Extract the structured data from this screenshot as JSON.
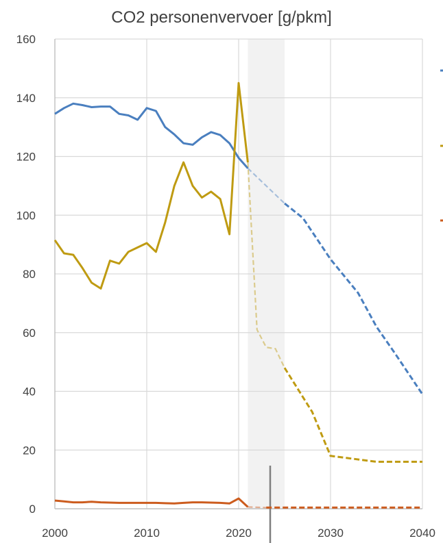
{
  "chart_data": {
    "type": "line",
    "title": "CO2 personenvervoer [g/pkm]",
    "xlabel": "",
    "ylabel": "",
    "xlim": [
      2000,
      2040
    ],
    "ylim": [
      0,
      160
    ],
    "x_ticks": [
      2000,
      2010,
      2020,
      2030,
      2040
    ],
    "y_ticks": [
      0,
      20,
      40,
      60,
      80,
      100,
      120,
      140,
      160
    ],
    "grid": true,
    "highlight_band": [
      2021,
      2025
    ],
    "colors": {
      "blue": "#4a7fbf",
      "gold": "#bf9b12",
      "orange": "#cc5c1e",
      "band": "#f2f2f2",
      "grid": "#d9d9d9",
      "axis": "#bfbfbf"
    },
    "series": [
      {
        "color": "#4a7fbf",
        "historic": [
          [
            2000,
            134.5
          ],
          [
            2001,
            136.5
          ],
          [
            2002,
            138
          ],
          [
            2003,
            137.5
          ],
          [
            2004,
            136.8
          ],
          [
            2005,
            137
          ],
          [
            2006,
            137
          ],
          [
            2007,
            134.5
          ],
          [
            2008,
            134
          ],
          [
            2009,
            132.5
          ],
          [
            2010,
            136.5
          ],
          [
            2011,
            135.5
          ],
          [
            2012,
            130
          ],
          [
            2013,
            127.5
          ],
          [
            2014,
            124.5
          ],
          [
            2015,
            124
          ],
          [
            2016,
            126.5
          ],
          [
            2017,
            128.3
          ],
          [
            2018,
            127.3
          ],
          [
            2019,
            124.5
          ],
          [
            2020,
            119.5
          ],
          [
            2021,
            116
          ]
        ],
        "projection_light": [
          [
            2021,
            116
          ],
          [
            2025,
            104
          ]
        ],
        "projection": [
          [
            2025,
            104
          ],
          [
            2027,
            99
          ],
          [
            2030,
            85
          ],
          [
            2033,
            73.5
          ],
          [
            2035,
            62
          ],
          [
            2037,
            53
          ],
          [
            2040,
            39
          ]
        ]
      },
      {
        "color": "#bf9b12",
        "historic": [
          [
            2000,
            91.5
          ],
          [
            2001,
            87
          ],
          [
            2002,
            86.5
          ],
          [
            2003,
            82
          ],
          [
            2004,
            77
          ],
          [
            2005,
            75
          ],
          [
            2006,
            84.5
          ],
          [
            2007,
            83.5
          ],
          [
            2008,
            87.5
          ],
          [
            2009,
            89
          ],
          [
            2010,
            90.5
          ],
          [
            2011,
            87.5
          ],
          [
            2012,
            97.5
          ],
          [
            2013,
            110
          ],
          [
            2014,
            118
          ],
          [
            2015,
            110
          ],
          [
            2016,
            106
          ],
          [
            2017,
            108
          ],
          [
            2018,
            105.5
          ],
          [
            2019,
            93.5
          ],
          [
            2020,
            145
          ],
          [
            2021,
            118
          ]
        ],
        "projection_light": [
          [
            2021,
            118
          ],
          [
            2022,
            61
          ],
          [
            2023,
            55
          ],
          [
            2024,
            54.5
          ],
          [
            2025,
            48
          ]
        ],
        "projection": [
          [
            2025,
            48
          ],
          [
            2028,
            33
          ],
          [
            2030,
            18
          ],
          [
            2035,
            16
          ],
          [
            2040,
            16
          ]
        ]
      },
      {
        "color": "#cc5c1e",
        "historic": [
          [
            2000,
            2.8
          ],
          [
            2001,
            2.5
          ],
          [
            2002,
            2.2
          ],
          [
            2003,
            2.2
          ],
          [
            2004,
            2.4
          ],
          [
            2005,
            2.2
          ],
          [
            2006,
            2.1
          ],
          [
            2007,
            2
          ],
          [
            2008,
            2
          ],
          [
            2009,
            2
          ],
          [
            2010,
            2
          ],
          [
            2011,
            2
          ],
          [
            2012,
            1.9
          ],
          [
            2013,
            1.8
          ],
          [
            2014,
            2
          ],
          [
            2015,
            2.2
          ],
          [
            2016,
            2.2
          ],
          [
            2017,
            2.1
          ],
          [
            2018,
            2
          ],
          [
            2019,
            1.8
          ],
          [
            2020,
            3.5
          ],
          [
            2021,
            0.6
          ]
        ],
        "projection_light": [
          [
            2021,
            0.6
          ],
          [
            2023,
            0.4
          ]
        ],
        "projection": [
          [
            2023,
            0.4
          ],
          [
            2030,
            0.4
          ],
          [
            2040,
            0.4
          ]
        ]
      }
    ]
  }
}
